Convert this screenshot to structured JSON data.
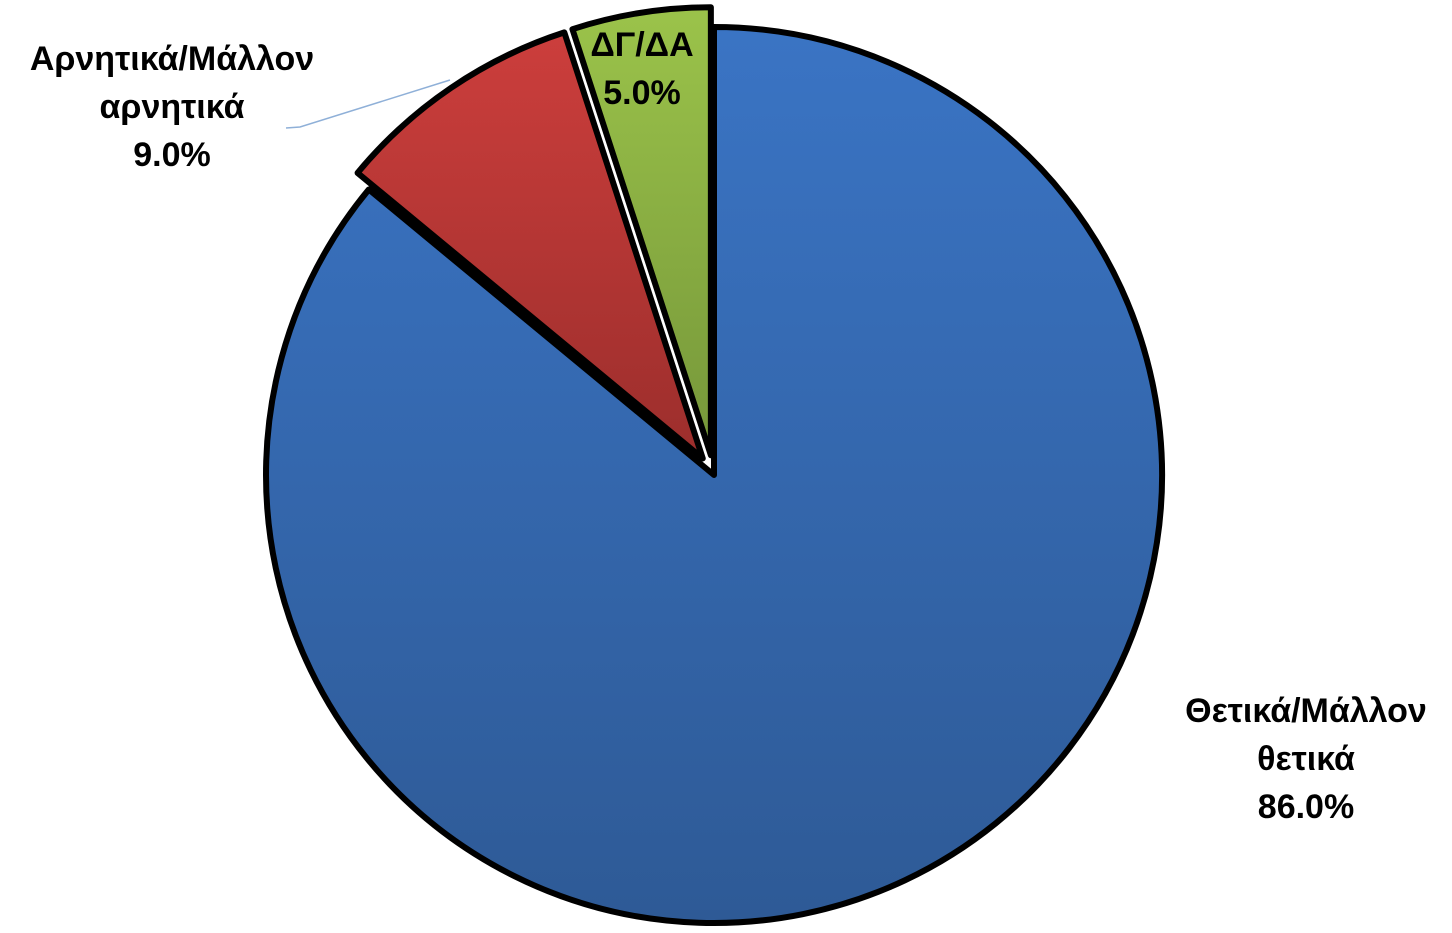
{
  "chart_data": {
    "type": "pie",
    "slices": [
      {
        "id": "positive",
        "label_lines": [
          "Θετικά/Μάλλον",
          "θετικά"
        ],
        "value": 86.0,
        "value_label": "86.0%",
        "color": "#3a74c4",
        "color_dark": "#2e5a96"
      },
      {
        "id": "negative",
        "label_lines": [
          "Αρνητικά/Μάλλον",
          "αρνητικά"
        ],
        "value": 9.0,
        "value_label": "9.0%",
        "color": "#cc3e3c",
        "color_dark": "#9c2e2c"
      },
      {
        "id": "dkna",
        "label_lines": [
          "ΔΓ/ΔΑ"
        ],
        "value": 5.0,
        "value_label": "5.0%",
        "color": "#9bc34a",
        "color_dark": "#76973a"
      }
    ],
    "start_angle_deg": 0,
    "direction": "clockwise",
    "exploded": [
      "negative",
      "dkna"
    ],
    "leader_line_color": "#8fb0d8",
    "legend": "none",
    "grid": false
  }
}
